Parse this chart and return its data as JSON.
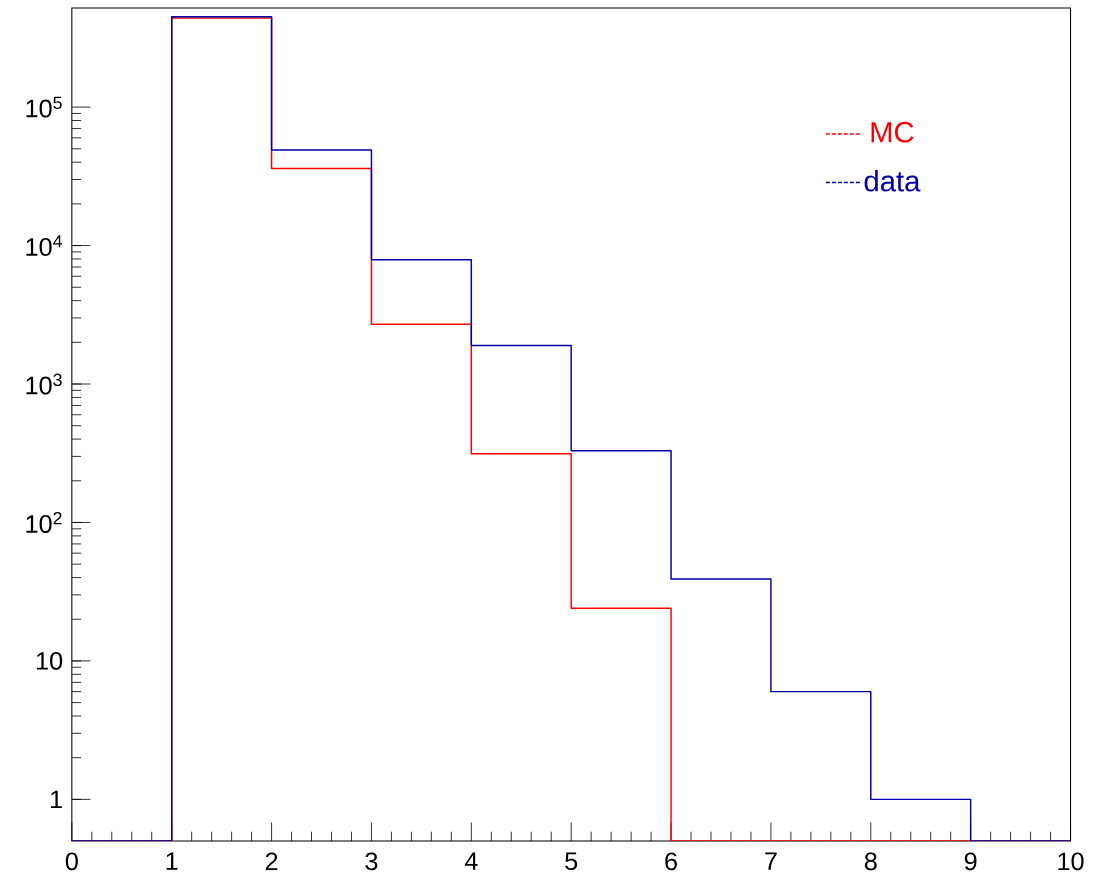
{
  "chart_data": {
    "type": "histogram",
    "bins": [
      0,
      1,
      2,
      3,
      4,
      5,
      6,
      7,
      8,
      9,
      10
    ],
    "series": [
      {
        "name": "MC",
        "color": "#ff0000",
        "values": [
          null,
          440000,
          36000,
          2700,
          313,
          24,
          null,
          null,
          null,
          null
        ]
      },
      {
        "name": "data",
        "color": "#0000aa",
        "values": [
          null,
          450000,
          49000,
          7900,
          1900,
          330,
          39,
          6,
          1,
          null
        ]
      }
    ],
    "log": "y",
    "xlim": [
      0,
      10
    ],
    "ylim": [
      0.5,
      520000
    ],
    "xticks": [
      0,
      1,
      2,
      3,
      4,
      5,
      6,
      7,
      8,
      9,
      10
    ],
    "yticks": [
      1,
      10,
      {
        "value": 100,
        "label": "10$^{2}$"
      },
      {
        "value": 1000,
        "label": "10$^{3}$"
      },
      {
        "value": 10000,
        "label": "10$^{4}$"
      },
      {
        "value": 100000,
        "label": "10$^{5}$"
      }
    ],
    "legend": "top right",
    "grid": false
  }
}
